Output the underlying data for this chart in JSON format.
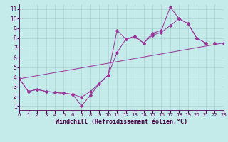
{
  "background_color": "#c5eaea",
  "line_color": "#993399",
  "xlabel": "Windchill (Refroidissement éolien,°C)",
  "xlim": [
    0,
    23
  ],
  "ylim": [
    0.5,
    11.5
  ],
  "xticks": [
    0,
    1,
    2,
    3,
    4,
    5,
    6,
    7,
    8,
    9,
    10,
    11,
    12,
    13,
    14,
    15,
    16,
    17,
    18,
    19,
    20,
    21,
    22,
    23
  ],
  "yticks": [
    1,
    2,
    3,
    4,
    5,
    6,
    7,
    8,
    9,
    10,
    11
  ],
  "line1_x": [
    0,
    1,
    2,
    3,
    4,
    5,
    6,
    7,
    8,
    9,
    10,
    11,
    12,
    13,
    14,
    15,
    16,
    17,
    18,
    19,
    20,
    21,
    22,
    23
  ],
  "line1_y": [
    3.8,
    2.5,
    2.7,
    2.5,
    2.4,
    2.3,
    2.2,
    1.0,
    2.1,
    3.3,
    4.2,
    8.8,
    7.9,
    8.1,
    7.5,
    8.5,
    8.8,
    11.2,
    10.0,
    9.5,
    8.0,
    7.5,
    7.5,
    7.5
  ],
  "line2_x": [
    0,
    1,
    2,
    3,
    4,
    5,
    6,
    7,
    8,
    9,
    10,
    11,
    12,
    13,
    14,
    15,
    16,
    17,
    18,
    19,
    20,
    21,
    22,
    23
  ],
  "line2_y": [
    3.8,
    2.5,
    2.7,
    2.5,
    2.4,
    2.3,
    2.2,
    1.9,
    2.5,
    3.3,
    4.2,
    6.5,
    7.9,
    8.2,
    7.5,
    8.3,
    8.6,
    9.3,
    10.0,
    9.5,
    8.0,
    7.5,
    7.5,
    7.5
  ],
  "line3_x": [
    0,
    23
  ],
  "line3_y": [
    3.8,
    7.5
  ],
  "gridcolor": "#a0cccc",
  "tick_fontsize": 5,
  "xlabel_fontsize": 6
}
